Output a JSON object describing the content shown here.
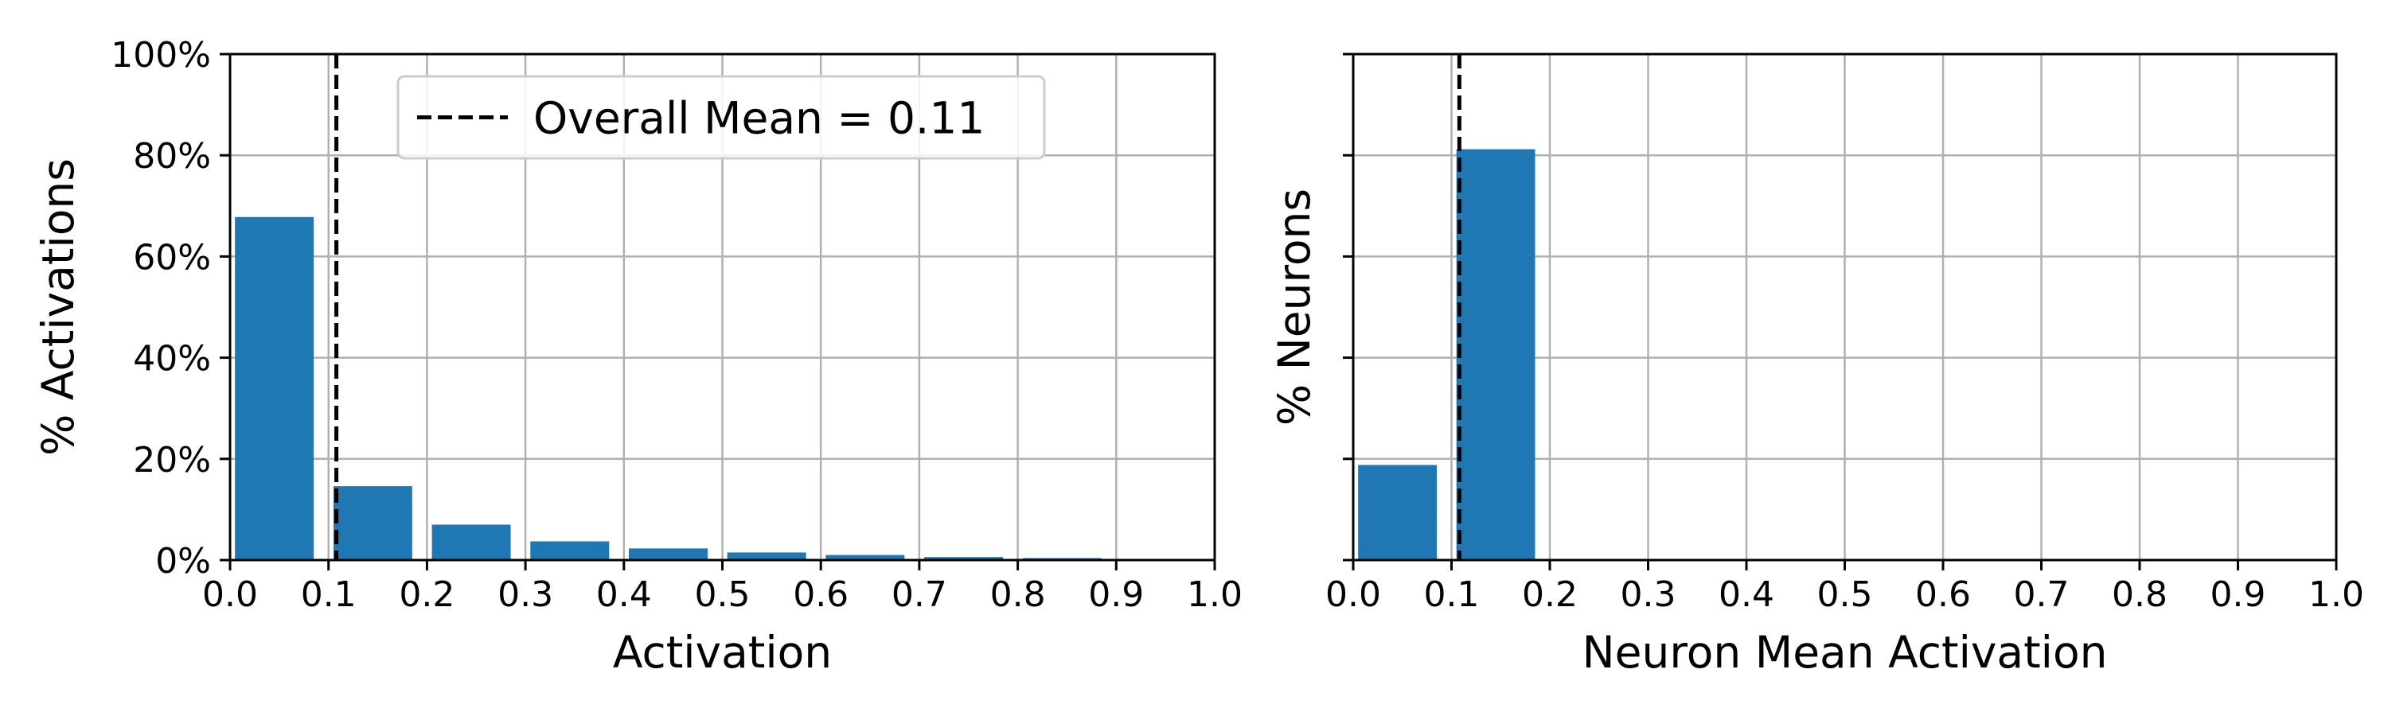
{
  "colors": {
    "bar": "#1f77b4",
    "grid": "#b0b0b0",
    "mean_line": "#000000",
    "legend_border": "#cccccc"
  },
  "chart_data": [
    {
      "type": "bar",
      "xlabel": "Activation",
      "ylabel": "% Activations",
      "xlim": [
        0,
        1
      ],
      "ylim": [
        0,
        100
      ],
      "xticks": [
        "0.0",
        "0.1",
        "0.2",
        "0.3",
        "0.4",
        "0.5",
        "0.6",
        "0.7",
        "0.8",
        "0.9",
        "1.0"
      ],
      "yticks": [
        "0%",
        "20%",
        "40%",
        "60%",
        "80%",
        "100%"
      ],
      "bin_width": 0.1,
      "bin_starts": [
        0.0,
        0.1,
        0.2,
        0.3,
        0.4,
        0.5,
        0.6,
        0.7,
        0.8,
        0.9
      ],
      "values": [
        67.8,
        14.6,
        7.0,
        3.7,
        2.3,
        1.5,
        1.0,
        0.6,
        0.4,
        0.1
      ],
      "mean": 0.108,
      "legend": "Overall Mean = 0.11",
      "legend_position": "top",
      "grid": true,
      "show_ytick_labels": true
    },
    {
      "type": "bar",
      "xlabel": "Neuron Mean Activation",
      "ylabel": "% Neurons",
      "xlim": [
        0,
        1
      ],
      "ylim": [
        0,
        100
      ],
      "xticks": [
        "0.0",
        "0.1",
        "0.2",
        "0.3",
        "0.4",
        "0.5",
        "0.6",
        "0.7",
        "0.8",
        "0.9",
        "1.0"
      ],
      "yticks": [
        "0%",
        "20%",
        "40%",
        "60%",
        "80%",
        "100%"
      ],
      "bin_width": 0.1,
      "bin_starts": [
        0.0,
        0.1,
        0.2,
        0.3,
        0.4,
        0.5,
        0.6,
        0.7,
        0.8,
        0.9
      ],
      "values": [
        18.8,
        81.2,
        0,
        0,
        0,
        0,
        0,
        0,
        0,
        0
      ],
      "mean": 0.108,
      "grid": true,
      "show_ytick_labels": false
    }
  ]
}
